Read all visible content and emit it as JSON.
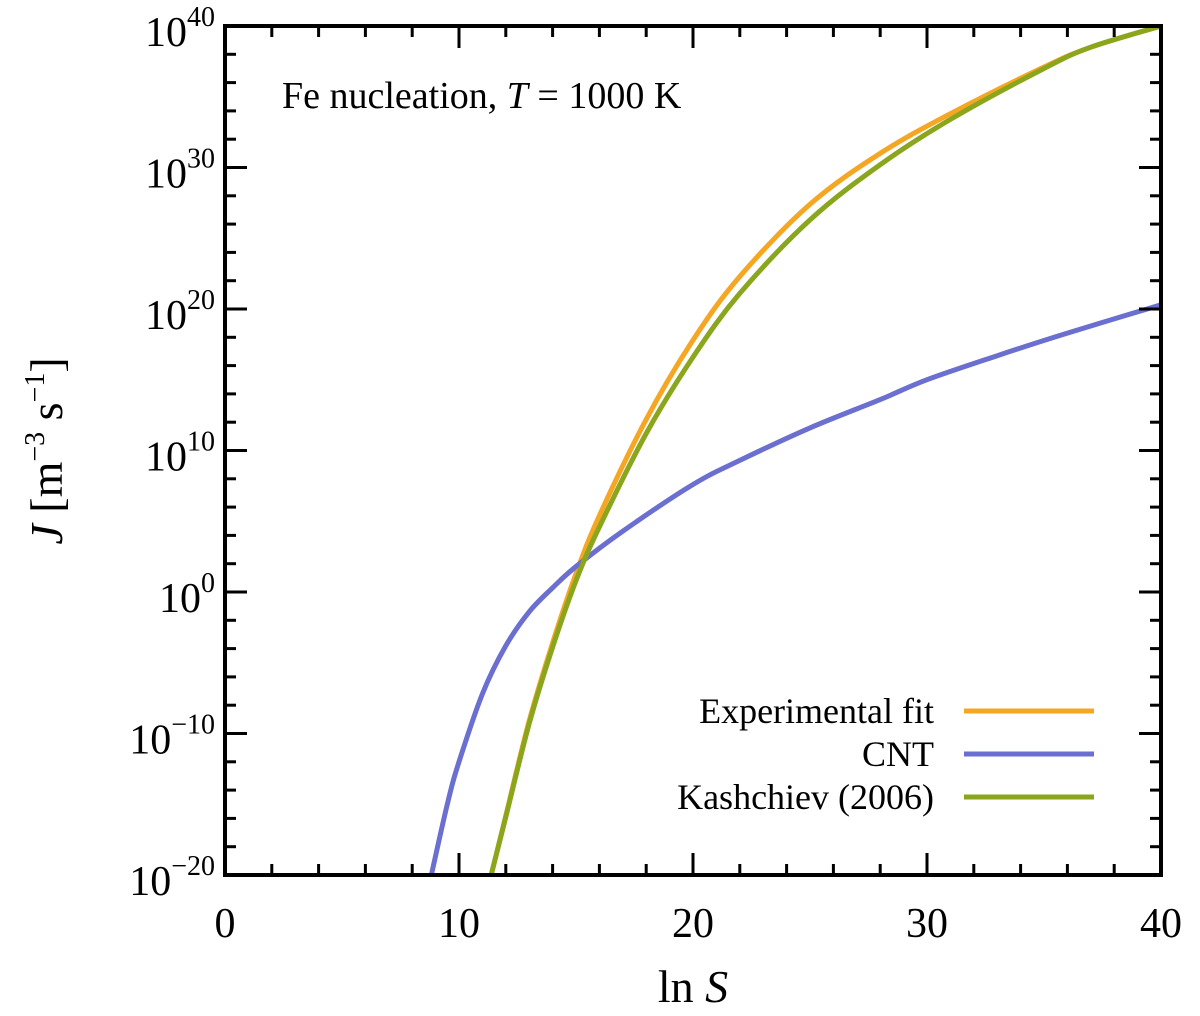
{
  "chart_data": {
    "type": "line",
    "title": "",
    "annotation": {
      "prefix": "Fe nucleation, ",
      "variable": "T",
      "suffix": " = 1000 K"
    },
    "xlabel": {
      "prefix": "ln ",
      "variable": "S"
    },
    "ylabel": {
      "variable": "J",
      "units": " [m",
      "exp1": "−3",
      "mid": " s",
      "exp2": "−1",
      "close": "]"
    },
    "xlim": [
      0,
      40
    ],
    "ylim_log10": [
      -20,
      40
    ],
    "x_ticks": [
      0,
      10,
      20,
      30,
      40
    ],
    "x_tick_labels": [
      "0",
      "10",
      "20",
      "30",
      "40"
    ],
    "y_ticks_log10": [
      -20,
      -10,
      0,
      10,
      20,
      30,
      40
    ],
    "y_tick_labels": [
      {
        "base": "10",
        "exp": "−20"
      },
      {
        "base": "10",
        "exp": "−10"
      },
      {
        "base": "10",
        "exp": "0"
      },
      {
        "base": "10",
        "exp": "10"
      },
      {
        "base": "10",
        "exp": "20"
      },
      {
        "base": "10",
        "exp": "30"
      },
      {
        "base": "10",
        "exp": "40"
      }
    ],
    "legend_position": "bottom-right",
    "series": [
      {
        "name": "Experimental fit",
        "color": "#f5a623",
        "x": [
          11.3,
          12,
          13,
          14,
          15,
          16,
          18,
          20,
          22,
          25,
          28,
          31,
          35,
          37,
          40
        ],
        "log10y": [
          -20.5,
          -15.8,
          -9.1,
          -3.6,
          1.3,
          5.4,
          12.2,
          17.8,
          22.3,
          27.4,
          31.0,
          33.8,
          37.1,
          38.5,
          40.0
        ]
      },
      {
        "name": "CNT",
        "color": "#6b6fd0",
        "x": [
          8.75,
          9.5,
          10,
          11,
          12,
          13,
          14,
          15,
          17,
          20,
          22,
          25,
          28,
          30,
          33,
          36,
          40
        ],
        "log10y": [
          -20.5,
          -15.0,
          -12.0,
          -7.2,
          -3.8,
          -1.4,
          0.3,
          1.8,
          4.3,
          7.6,
          9.3,
          11.6,
          13.6,
          15.0,
          16.7,
          18.3,
          20.3
        ]
      },
      {
        "name": "Kashchiev (2006)",
        "color": "#8aa61d",
        "x": [
          11.3,
          12,
          13,
          14,
          15,
          16,
          18,
          20,
          22,
          25,
          28,
          31,
          35,
          37,
          40
        ],
        "log10y": [
          -20.5,
          -15.9,
          -9.3,
          -3.9,
          0.8,
          4.6,
          11.2,
          16.6,
          21.1,
          26.3,
          30.2,
          33.4,
          37.0,
          38.5,
          40.0
        ]
      }
    ]
  }
}
